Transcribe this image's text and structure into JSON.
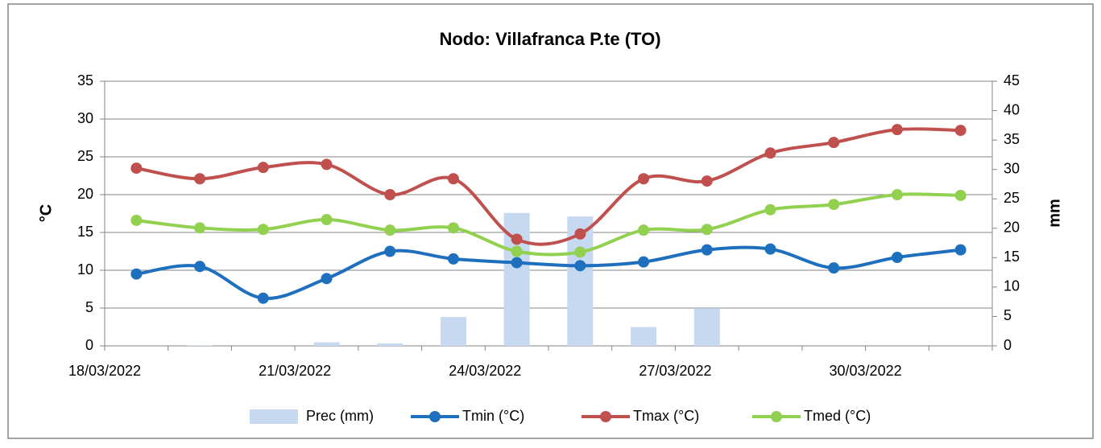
{
  "chart_data": {
    "type": "bar-line",
    "title": "Nodo: Villafranca P.te (TO)",
    "y_label": "°C",
    "y2_label": "mm",
    "categories": [
      "18/03/2022",
      null,
      null,
      "21/03/2022",
      null,
      null,
      "24/03/2022",
      null,
      null,
      "27/03/2022",
      null,
      null,
      "30/03/2022",
      null
    ],
    "ylim": [
      0,
      35
    ],
    "yticks": [
      0,
      5,
      10,
      15,
      20,
      25,
      30,
      35
    ],
    "y2lim": [
      0,
      45
    ],
    "y2ticks": [
      0,
      5,
      10,
      15,
      20,
      25,
      30,
      35,
      40,
      45
    ],
    "grid": true,
    "legend": "bottom",
    "series": [
      {
        "name": "Prec (mm)",
        "type": "bar",
        "axis": "y2",
        "color": "#c6d9f1",
        "values": [
          0,
          0.1,
          0,
          0.6,
          0.4,
          4.9,
          22.6,
          22.0,
          3.2,
          6.4,
          0,
          0,
          0,
          0
        ]
      },
      {
        "name": "Tmin (°C)",
        "type": "line",
        "color": "#1f6fbf",
        "values": [
          9.5,
          10.5,
          6.3,
          8.9,
          12.5,
          11.5,
          11.0,
          10.6,
          11.1,
          12.7,
          12.8,
          10.3,
          11.7,
          12.7
        ]
      },
      {
        "name": "Tmax (°C)",
        "type": "line",
        "color": "#c0504d",
        "values": [
          23.5,
          22.1,
          23.6,
          24.0,
          20.0,
          22.1,
          14.1,
          14.8,
          22.1,
          21.8,
          25.5,
          26.9,
          28.6,
          28.5
        ]
      },
      {
        "name": "Tmed (°C)",
        "type": "line",
        "color": "#92d050",
        "values": [
          16.6,
          15.6,
          15.4,
          16.7,
          15.3,
          15.6,
          12.5,
          12.4,
          15.3,
          15.4,
          18.0,
          18.7,
          20.0,
          19.9
        ]
      }
    ]
  }
}
